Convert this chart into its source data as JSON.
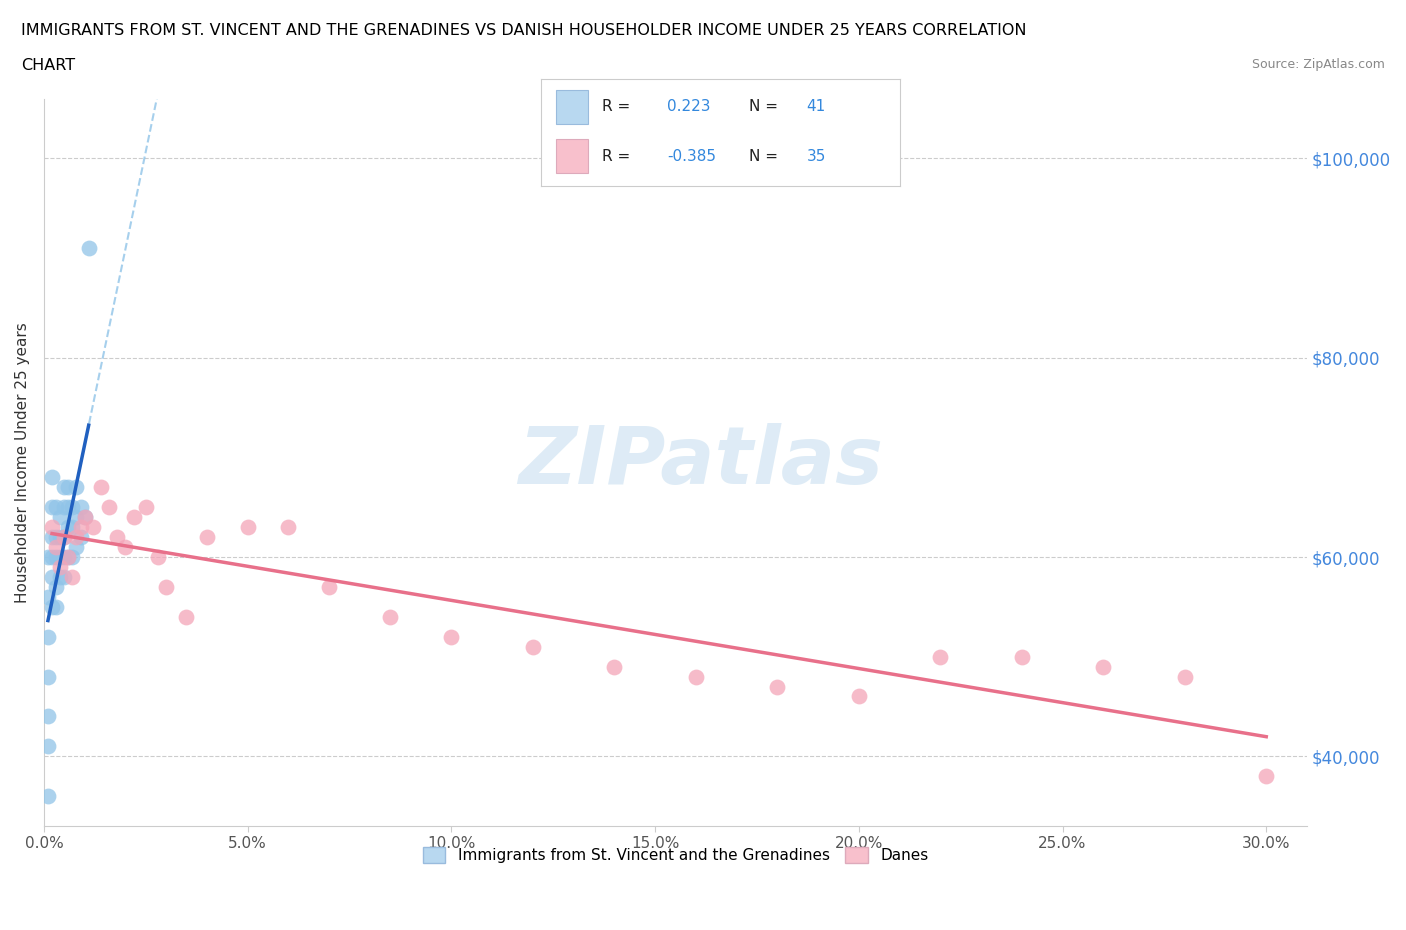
{
  "title_line1": "IMMIGRANTS FROM ST. VINCENT AND THE GRENADINES VS DANISH HOUSEHOLDER INCOME UNDER 25 YEARS CORRELATION",
  "title_line2": "CHART",
  "source": "Source: ZipAtlas.com",
  "ylabel": "Householder Income Under 25 years",
  "xlim": [
    0.0,
    0.31
  ],
  "ylim": [
    33000,
    106000
  ],
  "R_blue": 0.223,
  "N_blue": 41,
  "R_pink": -0.385,
  "N_pink": 35,
  "blue_scatter_color": "#90c4e8",
  "pink_scatter_color": "#f4a5b8",
  "blue_line_color": "#2060c0",
  "pink_line_color": "#e8708a",
  "blue_dash_color": "#90c4e8",
  "watermark_text": "ZIPatlas",
  "watermark_color": "#c8dff0",
  "legend_label_blue": "Immigrants from St. Vincent and the Grenadines",
  "legend_label_pink": "Danes",
  "legend_box_color_blue": "#b8d8f0",
  "legend_box_color_pink": "#f8c0cc",
  "blue_scatter_x": [
    0.001,
    0.001,
    0.001,
    0.001,
    0.001,
    0.001,
    0.001,
    0.002,
    0.002,
    0.002,
    0.002,
    0.002,
    0.002,
    0.003,
    0.003,
    0.003,
    0.003,
    0.003,
    0.004,
    0.004,
    0.004,
    0.004,
    0.005,
    0.005,
    0.005,
    0.005,
    0.005,
    0.006,
    0.006,
    0.006,
    0.006,
    0.007,
    0.007,
    0.007,
    0.008,
    0.008,
    0.008,
    0.009,
    0.009,
    0.01,
    0.011
  ],
  "blue_scatter_y": [
    36000,
    41000,
    44000,
    48000,
    52000,
    56000,
    60000,
    55000,
    58000,
    60000,
    62000,
    65000,
    68000,
    55000,
    57000,
    60000,
    62000,
    65000,
    58000,
    60000,
    62000,
    64000,
    58000,
    60000,
    62000,
    65000,
    67000,
    60000,
    63000,
    65000,
    67000,
    60000,
    63000,
    65000,
    61000,
    64000,
    67000,
    62000,
    65000,
    64000,
    91000
  ],
  "pink_scatter_x": [
    0.002,
    0.003,
    0.004,
    0.005,
    0.006,
    0.007,
    0.008,
    0.009,
    0.01,
    0.012,
    0.014,
    0.016,
    0.018,
    0.02,
    0.022,
    0.025,
    0.028,
    0.03,
    0.035,
    0.04,
    0.05,
    0.06,
    0.07,
    0.085,
    0.1,
    0.12,
    0.14,
    0.16,
    0.18,
    0.2,
    0.22,
    0.24,
    0.26,
    0.28,
    0.3
  ],
  "pink_scatter_y": [
    63000,
    61000,
    59000,
    62000,
    60000,
    58000,
    62000,
    63000,
    64000,
    63000,
    67000,
    65000,
    62000,
    61000,
    64000,
    65000,
    60000,
    57000,
    54000,
    62000,
    63000,
    63000,
    57000,
    54000,
    52000,
    51000,
    49000,
    48000,
    47000,
    46000,
    50000,
    50000,
    49000,
    48000,
    38000
  ],
  "ytick_vals": [
    40000,
    60000,
    80000,
    100000
  ],
  "ytick_labels": [
    "$40,000",
    "$60,000",
    "$80,000",
    "$100,000"
  ],
  "xtick_vals": [
    0.0,
    0.05,
    0.1,
    0.15,
    0.2,
    0.25,
    0.3
  ],
  "xtick_labels": [
    "0.0%",
    "5.0%",
    "10.0%",
    "15.0%",
    "20.0%",
    "25.0%",
    "30.0%"
  ]
}
